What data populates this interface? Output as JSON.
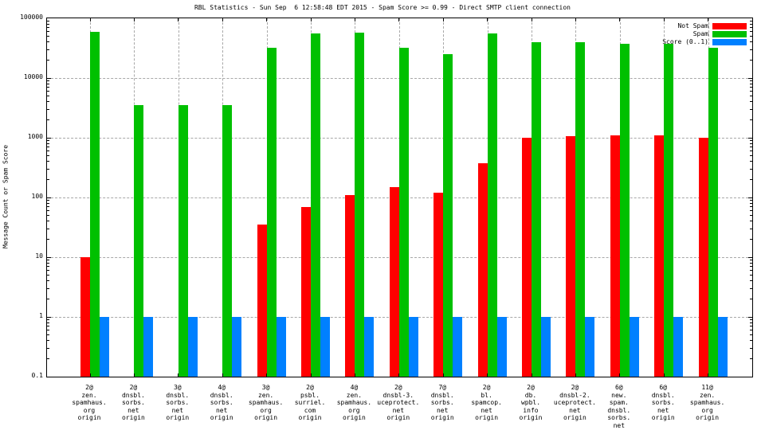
{
  "chart_data": {
    "type": "bar",
    "title": "RBL Statistics - Sun Sep  6 12:58:48 EDT 2015 - Spam Score >= 0.99 - Direct SMTP client connection",
    "ylabel": "Message Count or Spam Score",
    "xlabel": "",
    "y_scale": "log",
    "ylim": [
      0.1,
      100000
    ],
    "y_ticks": [
      {
        "label": "100000",
        "value": 100000
      },
      {
        "label": "10000",
        "value": 10000
      },
      {
        "label": "1000",
        "value": 1000
      },
      {
        "label": "100",
        "value": 100
      },
      {
        "label": "10",
        "value": 10
      },
      {
        "label": "1",
        "value": 1
      },
      {
        "label": "0.1",
        "value": 0.1
      }
    ],
    "grid": true,
    "legend_position": "top-right-inside",
    "colors": {
      "grid": "#a8a8a8",
      "axis": "#000000"
    },
    "categories": [
      [
        "2@",
        "zen.",
        "spamhaus.",
        "org",
        "origin"
      ],
      [
        "2@",
        "dnsbl.",
        "sorbs.",
        "net",
        "origin"
      ],
      [
        "3@",
        "dnsbl.",
        "sorbs.",
        "net",
        "origin"
      ],
      [
        "4@",
        "dnsbl.",
        "sorbs.",
        "net",
        "origin"
      ],
      [
        "3@",
        "zen.",
        "spamhaus.",
        "org",
        "origin"
      ],
      [
        "2@",
        "psbl.",
        "surriel.",
        "com",
        "origin"
      ],
      [
        "4@",
        "zen.",
        "spamhaus.",
        "org",
        "origin"
      ],
      [
        "2@",
        "dnsbl-3.",
        "uceprotect.",
        "net",
        "origin"
      ],
      [
        "7@",
        "dnsbl.",
        "sorbs.",
        "net",
        "origin"
      ],
      [
        "2@",
        "bl.",
        "spamcop.",
        "net",
        "origin"
      ],
      [
        "2@",
        "db.",
        "wpbl.",
        "info",
        "origin"
      ],
      [
        "2@",
        "dnsbl-2.",
        "uceprotect.",
        "net",
        "origin"
      ],
      [
        "6@",
        "new.",
        "spam.",
        "dnsbl.",
        "sorbs.",
        "net",
        "origin"
      ],
      [
        "6@",
        "dnsbl.",
        "sorbs.",
        "net",
        "origin"
      ],
      [
        "11@",
        "zen.",
        "spamhaus.",
        "org",
        "origin"
      ]
    ],
    "series": [
      {
        "name": "Not Spam",
        "color": "#ff0000",
        "values": [
          10,
          null,
          null,
          null,
          35,
          70,
          110,
          150,
          120,
          380,
          1000,
          1050,
          1100,
          1100,
          1000
        ]
      },
      {
        "name": "Spam",
        "color": "#00c000",
        "values": [
          60000,
          3500,
          3500,
          3500,
          32000,
          56000,
          57000,
          32000,
          25000,
          56000,
          40000,
          40000,
          38000,
          38000,
          32000
        ]
      },
      {
        "name": "Score (0..1)",
        "color": "#0080ff",
        "values": [
          1,
          1,
          1,
          1,
          1,
          1,
          1,
          1,
          1,
          1,
          1,
          1,
          1,
          1,
          1
        ]
      }
    ]
  }
}
